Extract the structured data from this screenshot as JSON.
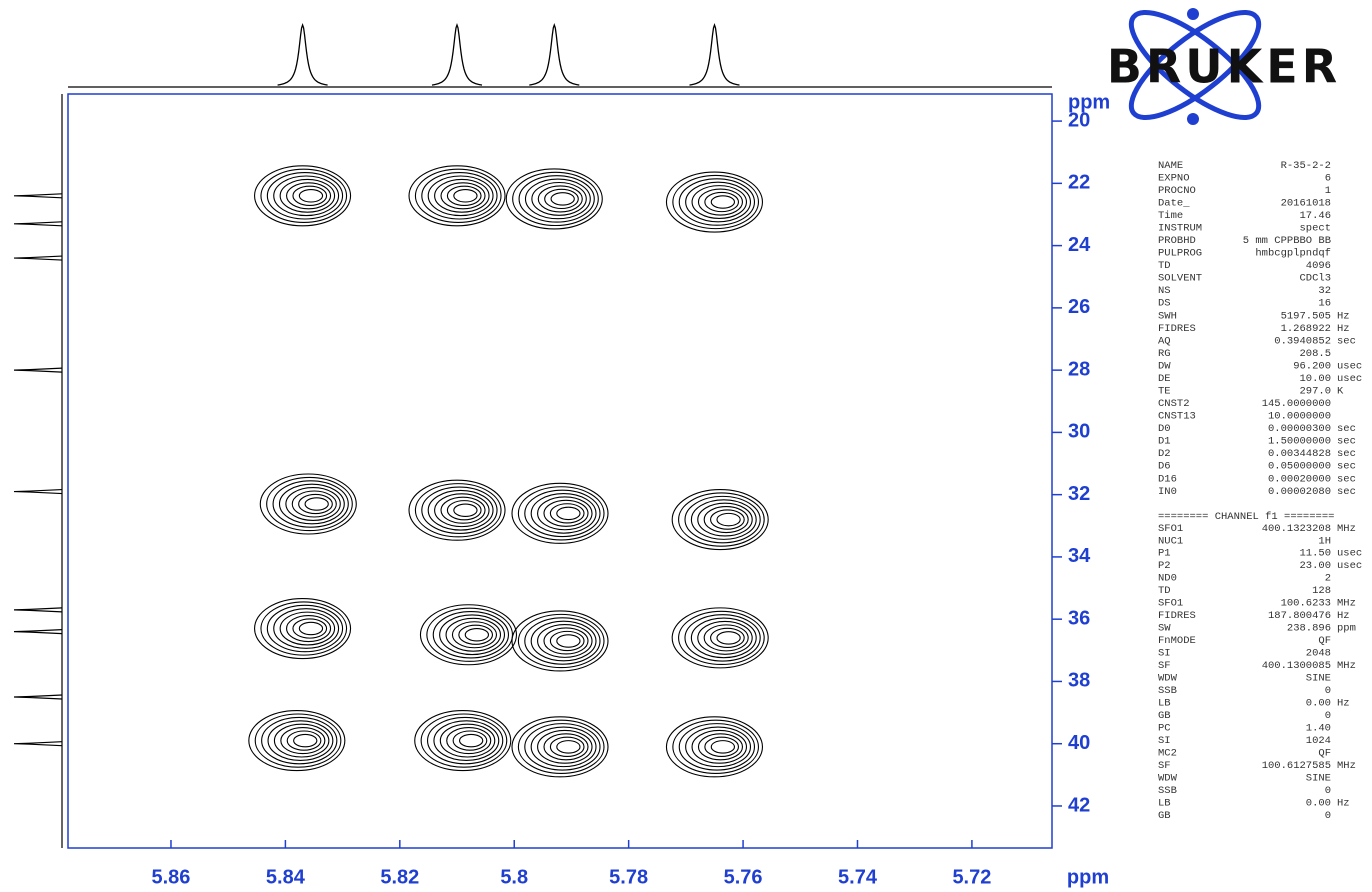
{
  "chart_data": {
    "type": "contour2d",
    "x_label": "ppm",
    "y_label": "ppm",
    "xlim": [
      5.878,
      5.706
    ],
    "ylim": [
      19.13,
      43.35
    ],
    "xticks": [
      5.86,
      5.84,
      5.82,
      5.8,
      5.78,
      5.76,
      5.74,
      5.72
    ],
    "yticks": [
      20,
      22,
      24,
      26,
      28,
      30,
      32,
      34,
      36,
      38,
      40,
      42
    ],
    "axis_color": "#1f3fd1",
    "contour_color": "#000000",
    "peaks": {
      "x": [
        5.837,
        5.81,
        5.793,
        5.765,
        5.836,
        5.81,
        5.792,
        5.764,
        5.837,
        5.808,
        5.792,
        5.764,
        5.838,
        5.809,
        5.792,
        5.765
      ],
      "y": [
        22.4,
        22.4,
        22.5,
        22.6,
        32.3,
        32.5,
        32.6,
        32.8,
        36.3,
        36.5,
        36.7,
        36.6,
        39.9,
        39.9,
        40.1,
        40.1
      ]
    },
    "f2_projection": [
      5.837,
      5.81,
      5.793,
      5.765
    ],
    "f1_projection": [
      22.4,
      23.3,
      24.4,
      28.0,
      31.9,
      35.7,
      36.4,
      38.5,
      40.0
    ],
    "logo": "BRUKER",
    "parameters": {
      "acquisition": [
        [
          "NAME",
          "R-35-2-2"
        ],
        [
          "EXPNO",
          "6"
        ],
        [
          "PROCNO",
          "1"
        ],
        [
          "Date_",
          "20161018"
        ],
        [
          "Time",
          "17.46"
        ],
        [
          "INSTRUM",
          "spect"
        ],
        [
          "PROBHD",
          "5 mm CPPBBO BB"
        ],
        [
          "PULPROG",
          "hmbcgplpndqf"
        ],
        [
          "TD",
          "4096"
        ],
        [
          "SOLVENT",
          "CDCl3"
        ],
        [
          "NS",
          "32"
        ],
        [
          "DS",
          "16"
        ],
        [
          "SWH",
          "5197.505",
          "Hz"
        ],
        [
          "FIDRES",
          "1.268922",
          "Hz"
        ],
        [
          "AQ",
          "0.3940852",
          "sec"
        ],
        [
          "RG",
          "208.5"
        ],
        [
          "DW",
          "96.200",
          "usec"
        ],
        [
          "DE",
          "10.00",
          "usec"
        ],
        [
          "TE",
          "297.0",
          "K"
        ],
        [
          "CNST2",
          "145.0000000"
        ],
        [
          "CNST13",
          "10.0000000"
        ],
        [
          "D0",
          "0.00000300",
          "sec"
        ],
        [
          "D1",
          "1.50000000",
          "sec"
        ],
        [
          "D2",
          "0.00344828",
          "sec"
        ],
        [
          "D6",
          "0.05000000",
          "sec"
        ],
        [
          "D16",
          "0.00020000",
          "sec"
        ],
        [
          "IN0",
          "0.00002080",
          "sec"
        ]
      ],
      "channel_header": "======== CHANNEL f1 ========",
      "channel": [
        [
          "SFO1",
          "400.1323208",
          "MHz"
        ],
        [
          "NUC1",
          "1H"
        ],
        [
          "P1",
          "11.50",
          "usec"
        ],
        [
          "P2",
          "23.00",
          "usec"
        ],
        [
          "ND0",
          "2"
        ],
        [
          "TD",
          "128"
        ],
        [
          "SFO1",
          "100.6233",
          "MHz"
        ],
        [
          "FIDRES",
          "187.800476",
          "Hz"
        ],
        [
          "SW",
          "238.896",
          "ppm"
        ],
        [
          "FnMODE",
          "QF"
        ],
        [
          "SI",
          "2048"
        ],
        [
          "SF",
          "400.1300085",
          "MHz"
        ],
        [
          "WDW",
          "SINE"
        ],
        [
          "SSB",
          "0"
        ],
        [
          "LB",
          "0.00",
          "Hz"
        ],
        [
          "GB",
          "0"
        ],
        [
          "PC",
          "1.40"
        ],
        [
          "SI",
          "1024"
        ],
        [
          "MC2",
          "QF"
        ],
        [
          "SF",
          "100.6127585",
          "MHz"
        ],
        [
          "WDW",
          "SINE"
        ],
        [
          "SSB",
          "0"
        ],
        [
          "LB",
          "0.00",
          "Hz"
        ],
        [
          "GB",
          "0"
        ]
      ]
    }
  }
}
